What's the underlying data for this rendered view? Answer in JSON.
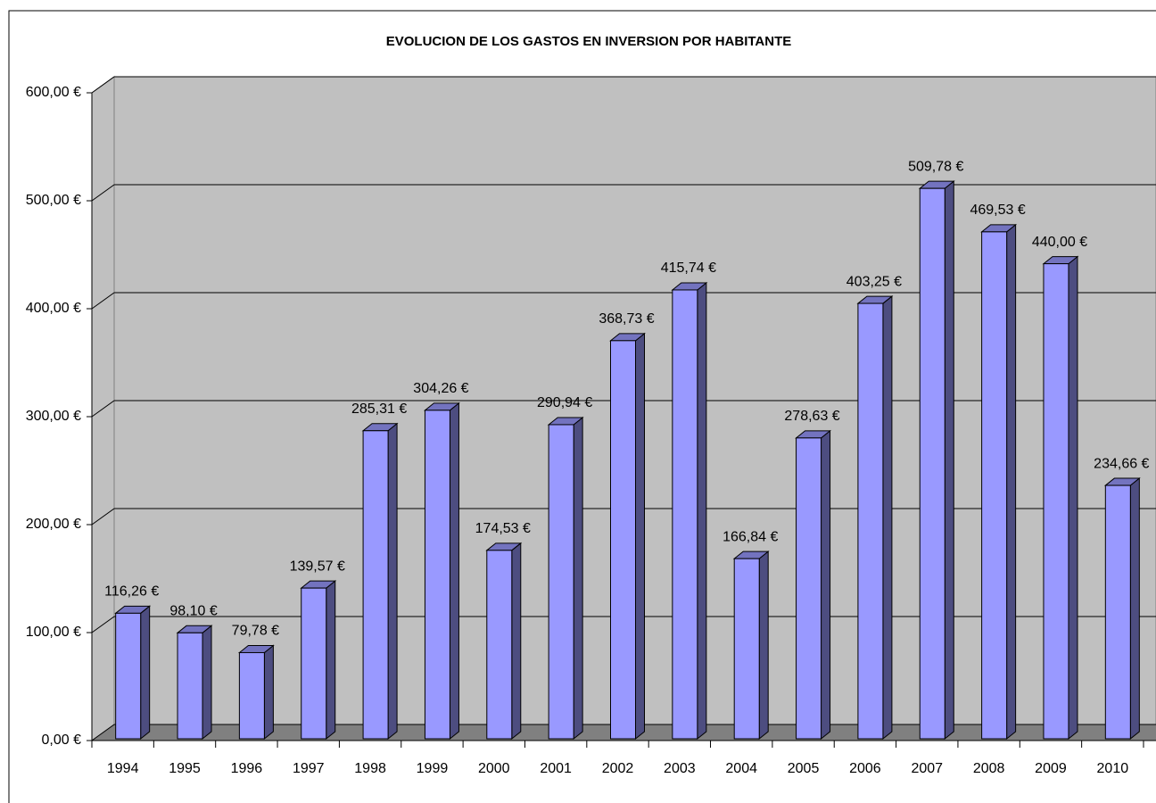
{
  "chart_data": {
    "type": "bar3d",
    "title": "EVOLUCION DE LOS GASTOS EN INVERSION POR HABITANTE",
    "categories": [
      "1994",
      "1995",
      "1996",
      "1997",
      "1998",
      "1999",
      "2000",
      "2001",
      "2002",
      "2003",
      "2004",
      "2005",
      "2006",
      "2007",
      "2008",
      "2009",
      "2010"
    ],
    "values": [
      116.26,
      98.1,
      79.78,
      139.57,
      285.31,
      304.26,
      174.53,
      290.94,
      368.73,
      415.74,
      166.84,
      278.63,
      403.25,
      509.78,
      469.53,
      440.0,
      234.66
    ],
    "value_labels": [
      "116,26 €",
      "98,10 €",
      "79,78 €",
      "139,57 €",
      "285,31 €",
      "304,26 €",
      "174,53 €",
      "290,94 €",
      "368,73 €",
      "415,74 €",
      "166,84 €",
      "278,63 €",
      "403,25 €",
      "509,78 €",
      "469,53 €",
      "440,00 €",
      "234,66 €"
    ],
    "color": "#9999ff",
    "ylim": [
      0,
      600
    ],
    "yticks": [
      {
        "value": 0,
        "label": "0,00 €"
      },
      {
        "value": 100,
        "label": "100,00 €"
      },
      {
        "value": 200,
        "label": "200,00 €"
      },
      {
        "value": 300,
        "label": "300,00 €"
      },
      {
        "value": 400,
        "label": "400,00 €"
      },
      {
        "value": 500,
        "label": "500,00 €"
      },
      {
        "value": 600,
        "label": "600,00 €"
      }
    ],
    "grid": true
  }
}
